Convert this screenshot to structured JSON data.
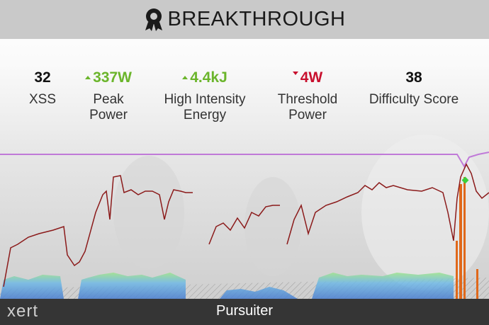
{
  "header": {
    "title": "BREAKTHROUGH"
  },
  "metrics": [
    {
      "value": "32",
      "label": "XSS",
      "trend": "none"
    },
    {
      "value": "337W",
      "label": "Peak Power",
      "trend": "up"
    },
    {
      "value": "4.4kJ",
      "label": "High Intensity Energy",
      "trend": "up"
    },
    {
      "value": "4W",
      "label": "Threshold Power",
      "trend": "down"
    },
    {
      "value": "38",
      "label": "Difficulty Score",
      "trend": "none"
    }
  ],
  "footer": {
    "logo": "xert",
    "title": "Pursuiter"
  }
}
